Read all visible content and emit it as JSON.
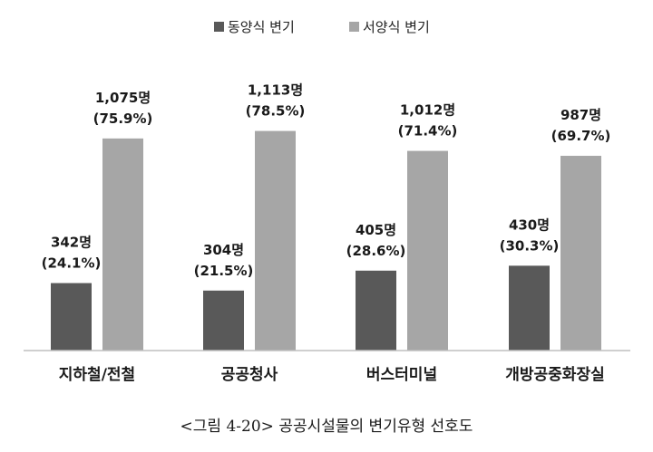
{
  "chart_data": {
    "type": "bar",
    "categories": [
      "지하철/전철",
      "공공청사",
      "버스터미널",
      "개방공중화장실"
    ],
    "series": [
      {
        "name": "동양식 변기",
        "color": "#595959",
        "values": [
          342,
          304,
          405,
          430
        ],
        "count_labels": [
          "342명",
          "304명",
          "405명",
          "430명"
        ],
        "percent_labels": [
          "(24.1%)",
          "(21.5%)",
          "(28.6%)",
          "(30.3%)"
        ]
      },
      {
        "name": "서양식 변기",
        "color": "#a6a6a6",
        "values": [
          1075,
          1113,
          1012,
          987
        ],
        "count_labels": [
          "1,075명",
          "1,113명",
          "1,012명",
          "987명"
        ],
        "percent_labels": [
          "(75.9%)",
          "(78.5%)",
          "(71.4%)",
          "(69.7%)"
        ]
      }
    ],
    "ylim": [
      0,
      1200
    ],
    "grid": false,
    "legend_position": "top-center",
    "axis_color": "#bfbfbf"
  },
  "caption": "<그림 4-20> 공공시설물의 변기유형 선호도"
}
